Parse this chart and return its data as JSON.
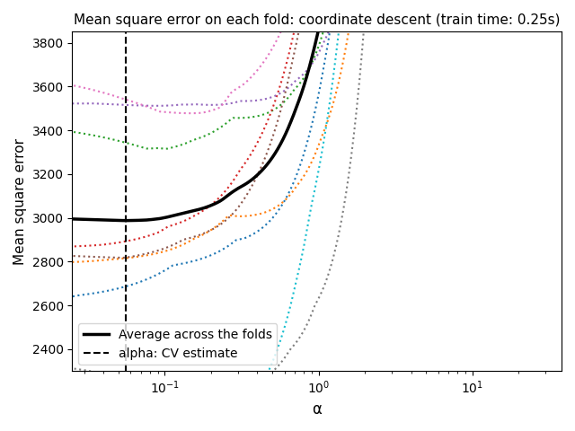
{
  "title": "Mean square error on each fold: coordinate descent (train time: 0.25s)",
  "xlabel": "α",
  "ylabel": "Mean square error",
  "ylim": [
    2300,
    3850
  ],
  "legend_solid": "Average across the folds",
  "legend_dashed": "alpha: CV estimate",
  "n_alphas": 200,
  "alpha_min_log": -1.7,
  "alpha_max_log": 1.7,
  "n_cv": 10,
  "xlim_left": 0.025,
  "xlim_right": 38,
  "fold_colors": [
    "#1f77b4",
    "#ff7f0e",
    "#2ca02c",
    "#d62728",
    "#9467bd",
    "#8c564b",
    "#e377c2",
    "#7f7f7f",
    "#bcbd22",
    "#17becf"
  ],
  "title_fontsize": 11,
  "label_fontsize": 12,
  "legend_fontsize": 10,
  "linewidth_avg": 2.5,
  "linewidth_fold": 1.5
}
